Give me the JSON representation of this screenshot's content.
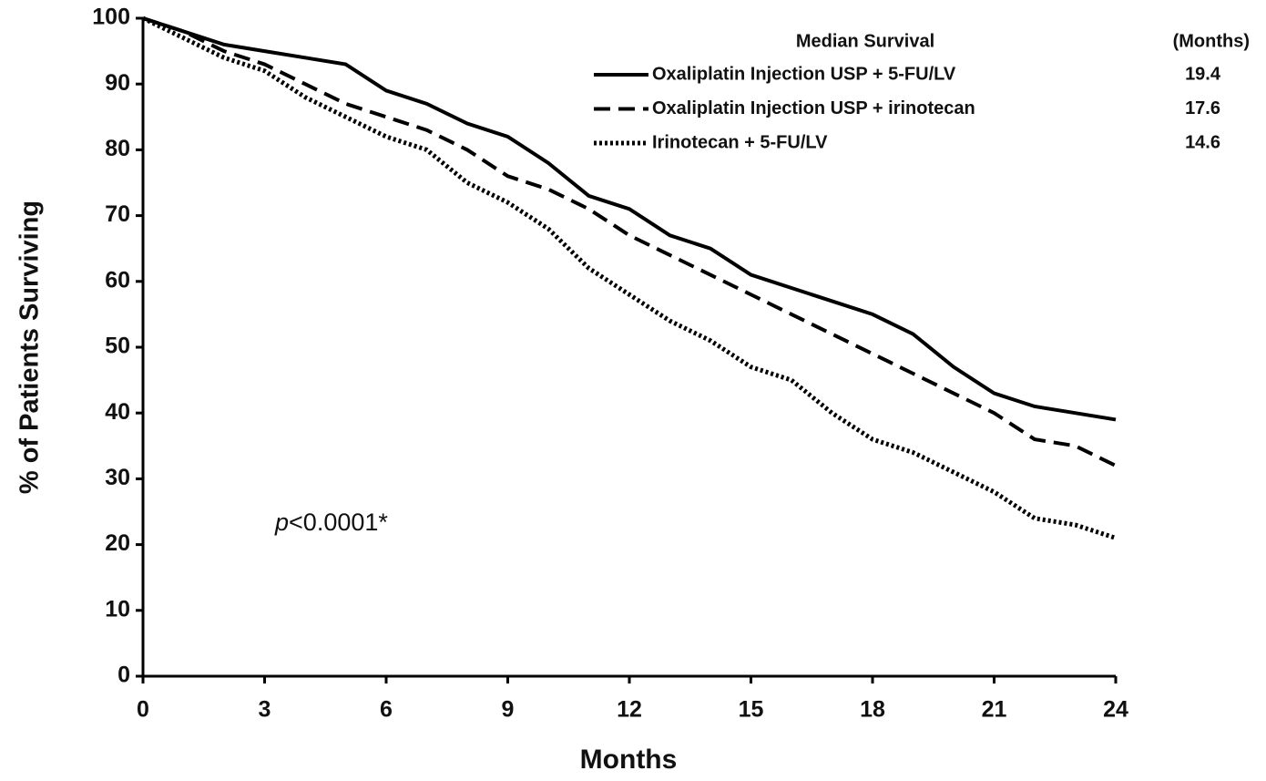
{
  "chart_data": {
    "type": "line",
    "xlabel": "Months",
    "ylabel": "% of Patients Surviving",
    "x": [
      0,
      1,
      2,
      3,
      4,
      5,
      6,
      7,
      8,
      9,
      10,
      11,
      12,
      13,
      14,
      15,
      16,
      17,
      18,
      19,
      20,
      21,
      22,
      23,
      24
    ],
    "series": [
      {
        "name": "Oxaliplatin Injection USP + 5-FU/LV",
        "color": "#000000",
        "dash": "solid",
        "median": "19.4",
        "values": [
          100,
          98,
          96,
          95,
          94,
          93,
          89,
          87,
          84,
          82,
          78,
          73,
          71,
          67,
          65,
          61,
          59,
          57,
          55,
          52,
          47,
          43,
          41,
          40,
          39
        ]
      },
      {
        "name": "Oxaliplatin Injection USP + irinotecan",
        "color": "#000000",
        "dash": "dashed",
        "median": "17.6",
        "values": [
          100,
          98,
          95,
          93,
          90,
          87,
          85,
          83,
          80,
          76,
          74,
          71,
          67,
          64,
          61,
          58,
          55,
          52,
          49,
          46,
          43,
          40,
          36,
          35,
          32
        ]
      },
      {
        "name": "Irinotecan + 5-FU/LV",
        "color": "#000000",
        "dash": "dotted",
        "median": "14.6",
        "values": [
          100,
          97,
          94,
          92,
          88,
          85,
          82,
          80,
          75,
          72,
          68,
          62,
          58,
          54,
          51,
          47,
          45,
          40,
          36,
          34,
          31,
          28,
          24,
          23,
          21
        ]
      }
    ],
    "legend_title": "Median Survival",
    "legend_value_header": "(Months)",
    "annotation": [
      "p",
      "<0.0001*"
    ],
    "xlim": [
      0,
      24
    ],
    "xticks": [
      0,
      3,
      6,
      9,
      12,
      15,
      18,
      21,
      24
    ],
    "ylim": [
      0,
      100
    ],
    "yticks": [
      0,
      10,
      20,
      30,
      40,
      50,
      60,
      70,
      80,
      90,
      100
    ]
  }
}
